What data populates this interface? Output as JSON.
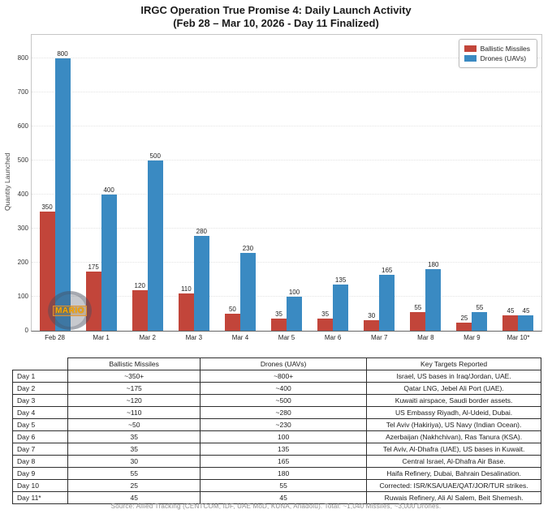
{
  "title": {
    "line1": "IRGC Operation True Promise 4: Daily Launch Activity",
    "line2": "(Feb 28 – Mar 10, 2026 - Day 11 Finalized)"
  },
  "colors": {
    "missiles": "#c2453a",
    "drones": "#3a8ac2"
  },
  "watermark": "MARIO",
  "chart_data": {
    "type": "bar",
    "title": "IRGC Operation True Promise 4: Daily Launch Activity (Feb 28 – Mar 10, 2026 - Day 11 Finalized)",
    "categories": [
      "Feb 28",
      "Mar 1",
      "Mar 2",
      "Mar 3",
      "Mar 4",
      "Mar 5",
      "Mar 6",
      "Mar 7",
      "Mar 8",
      "Mar 9",
      "Mar 10*"
    ],
    "series": [
      {
        "name": "Ballistic Missiles",
        "color_key": "missiles",
        "values": [
          350,
          175,
          120,
          110,
          50,
          35,
          35,
          30,
          55,
          25,
          45
        ]
      },
      {
        "name": "Drones (UAVs)",
        "color_key": "drones",
        "values": [
          800,
          400,
          500,
          280,
          230,
          100,
          135,
          165,
          180,
          55,
          45
        ]
      }
    ],
    "xlabel": "",
    "ylabel": "Quantity Launched",
    "ylim": [
      0,
      870
    ],
    "yticks": [
      0,
      100,
      200,
      300,
      400,
      500,
      600,
      700,
      800
    ],
    "grid": true,
    "bar_value_labels": true,
    "legend_position": "top-right"
  },
  "table": {
    "headers": [
      "",
      "Ballistic Missiles",
      "Drones (UAVs)",
      "Key Targets Reported"
    ],
    "rows": [
      {
        "day": "Day 1",
        "missiles": "~350+",
        "drones": "~800+",
        "targets": "Israel, US bases in Iraq/Jordan, UAE."
      },
      {
        "day": "Day 2",
        "missiles": "~175",
        "drones": "~400",
        "targets": "Qatar LNG, Jebel Ali Port (UAE)."
      },
      {
        "day": "Day 3",
        "missiles": "~120",
        "drones": "~500",
        "targets": "Kuwaiti airspace, Saudi border assets."
      },
      {
        "day": "Day 4",
        "missiles": "~110",
        "drones": "~280",
        "targets": "US Embassy Riyadh, Al-Udeid, Dubai."
      },
      {
        "day": "Day 5",
        "missiles": "~50",
        "drones": "~230",
        "targets": "Tel Aviv (Hakiriya), US Navy (Indian Ocean)."
      },
      {
        "day": "Day 6",
        "missiles": "35",
        "drones": "100",
        "targets": "Azerbaijan (Nakhchivan), Ras Tanura (KSA)."
      },
      {
        "day": "Day 7",
        "missiles": "35",
        "drones": "135",
        "targets": "Tel Aviv, Al-Dhafra (UAE), US bases in Kuwait."
      },
      {
        "day": "Day 8",
        "missiles": "30",
        "drones": "165",
        "targets": "Central Israel, Al-Dhafra Air Base."
      },
      {
        "day": "Day 9",
        "missiles": "55",
        "drones": "180",
        "targets": "Haifa Refinery, Dubai, Bahrain Desalination."
      },
      {
        "day": "Day 10",
        "missiles": "25",
        "drones": "55",
        "targets": "Corrected: ISR/KSA/UAE/QAT/JOR/TUR strikes."
      },
      {
        "day": "Day 11*",
        "missiles": "45",
        "drones": "45",
        "targets": "Ruwais Refinery, Ali Al Salem, Beit Shemesh."
      }
    ]
  },
  "footer": "Source: Allied Tracking (CENTCOM, IDF, UAE MoD, KUNA, Anadolu). Total: ~1,040 Missiles, ~3,000 Drones."
}
